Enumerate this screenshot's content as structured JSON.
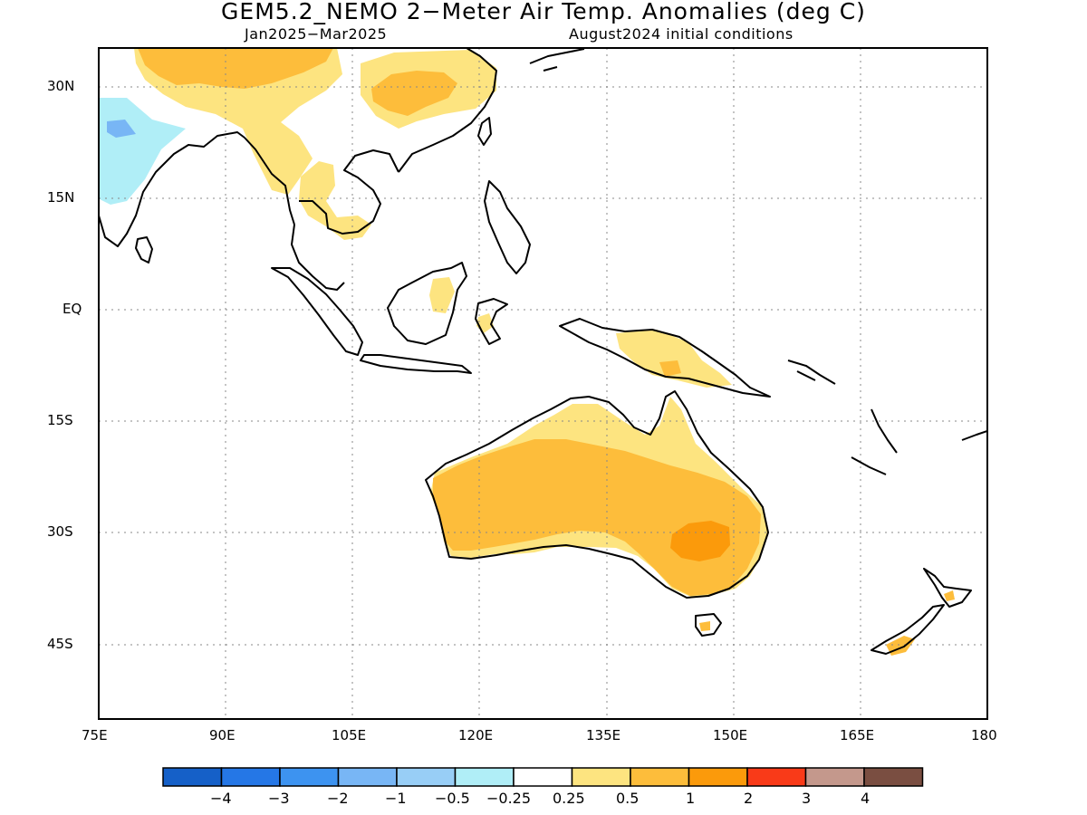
{
  "header": {
    "title": "GEM5.2_NEMO 2−Meter Air Temp. Anomalies (deg C)",
    "period": "Jan2025−Mar2025",
    "init": "August2024 initial conditions"
  },
  "axes": {
    "lat_labels": [
      "30N",
      "15N",
      "EQ",
      "15S",
      "30S",
      "45S"
    ],
    "lon_labels": [
      "75E",
      "90E",
      "105E",
      "120E",
      "135E",
      "150E",
      "165E",
      "180"
    ]
  },
  "colorbar": {
    "labels": [
      "−4",
      "−3",
      "−2",
      "−1",
      "−0.5",
      "−0.25",
      "0.25",
      "0.5",
      "1",
      "2",
      "3",
      "4"
    ],
    "colors": [
      "#1560c8",
      "#2577e6",
      "#3d93f0",
      "#78b6f5",
      "#98cef6",
      "#b0eef7",
      "#ffffff",
      "#fde480",
      "#fdbd3b",
      "#fb9a0b",
      "#f93a18",
      "#c4988c",
      "#7a4e41"
    ]
  },
  "map": {
    "region": "75E–180, 55S–35N",
    "anomaly_regions": [
      {
        "name": "tibet-warm",
        "level": "0.5"
      },
      {
        "name": "china-warm",
        "level": "0.25"
      },
      {
        "name": "india-cool",
        "level": "-0.25"
      },
      {
        "name": "indochina-warm",
        "level": "0.25"
      },
      {
        "name": "new-guinea-warm",
        "level": "0.25"
      },
      {
        "name": "australia-warm",
        "level": "0.5"
      },
      {
        "name": "southeast-australia-warm",
        "level": "1"
      },
      {
        "name": "new-zealand-warm",
        "level": "0.5"
      }
    ]
  }
}
